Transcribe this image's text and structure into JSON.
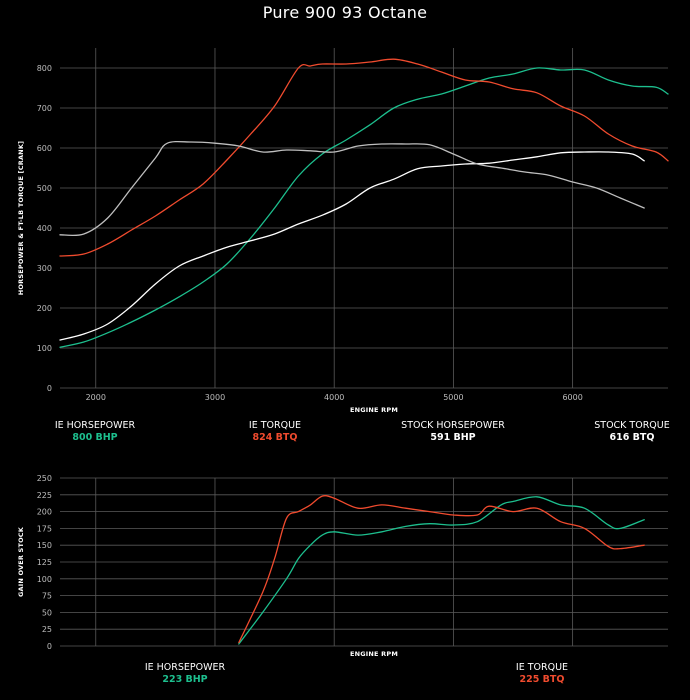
{
  "title": "Pure 900 93 Octane",
  "colors": {
    "ie_hp": "#1dbf8e",
    "ie_tq": "#f04b2e",
    "stock_hp": "#ffffff",
    "stock_tq": "#bfbfbf",
    "grid": "#5a5a5a"
  },
  "legend_top": [
    {
      "name": "IE HORSEPOWER",
      "value": "800 BHP",
      "color": "#1dbf8e"
    },
    {
      "name": "IE TORQUE",
      "value": "824 BTQ",
      "color": "#f04b2e"
    },
    {
      "name": "STOCK HORSEPOWER",
      "value": "591 BHP",
      "color": "#ffffff"
    },
    {
      "name": "STOCK TORQUE",
      "value": "616 BTQ",
      "color": "#ffffff"
    }
  ],
  "legend_bottom": [
    {
      "name": "IE HORSEPOWER",
      "value": "223 BHP",
      "color": "#1dbf8e"
    },
    {
      "name": "IE TORQUE",
      "value": "225 BTQ",
      "color": "#f04b2e"
    }
  ],
  "chart_data": [
    {
      "type": "line",
      "title": "Pure 900 93 Octane",
      "xlabel": "ENGINE RPM",
      "ylabel": "HORSEPOWER & FT-LB TORQUE [CRANK]",
      "xlim": [
        1700,
        6800
      ],
      "ylim": [
        0,
        850
      ],
      "xticks": [
        2000,
        3000,
        4000,
        5000,
        6000
      ],
      "yticks": [
        0,
        100,
        200,
        300,
        400,
        500,
        600,
        700,
        800
      ],
      "grid": true,
      "series": [
        {
          "name": "IE HORSEPOWER",
          "color": "#1dbf8e",
          "x": [
            1700,
            1900,
            2100,
            2300,
            2500,
            2700,
            2900,
            3100,
            3300,
            3500,
            3700,
            3900,
            4100,
            4300,
            4500,
            4700,
            4900,
            5100,
            5300,
            5500,
            5700,
            5900,
            6100,
            6300,
            6500,
            6700,
            6800
          ],
          "y": [
            102,
            115,
            138,
            165,
            195,
            228,
            265,
            310,
            375,
            450,
            530,
            585,
            620,
            658,
            700,
            722,
            735,
            755,
            775,
            785,
            800,
            795,
            795,
            770,
            755,
            752,
            735
          ]
        },
        {
          "name": "IE TORQUE",
          "color": "#f04b2e",
          "x": [
            1700,
            1900,
            2100,
            2300,
            2500,
            2700,
            2900,
            3100,
            3300,
            3500,
            3700,
            3800,
            3900,
            4100,
            4300,
            4500,
            4700,
            4900,
            5100,
            5300,
            5500,
            5700,
            5900,
            6100,
            6300,
            6500,
            6700,
            6800
          ],
          "y": [
            330,
            335,
            360,
            395,
            430,
            470,
            510,
            570,
            635,
            705,
            800,
            805,
            810,
            810,
            815,
            822,
            810,
            790,
            770,
            765,
            748,
            738,
            705,
            680,
            635,
            605,
            590,
            568
          ]
        },
        {
          "name": "STOCK HORSEPOWER",
          "color": "#ffffff",
          "x": [
            1700,
            1900,
            2100,
            2300,
            2500,
            2700,
            2900,
            3100,
            3300,
            3500,
            3700,
            3900,
            4100,
            4300,
            4500,
            4700,
            4900,
            5100,
            5300,
            5500,
            5700,
            5900,
            6100,
            6300,
            6500,
            6600
          ],
          "y": [
            120,
            135,
            160,
            205,
            260,
            305,
            330,
            352,
            368,
            385,
            410,
            432,
            460,
            500,
            522,
            548,
            555,
            560,
            562,
            570,
            578,
            588,
            590,
            590,
            585,
            568
          ]
        },
        {
          "name": "STOCK TORQUE",
          "color": "#bfbfbf",
          "x": [
            1700,
            1900,
            2100,
            2300,
            2500,
            2600,
            2800,
            3000,
            3200,
            3400,
            3600,
            3800,
            4000,
            4200,
            4400,
            4600,
            4800,
            5000,
            5200,
            5400,
            5600,
            5800,
            6000,
            6200,
            6400,
            6600
          ],
          "y": [
            383,
            385,
            425,
            500,
            575,
            612,
            615,
            612,
            605,
            590,
            595,
            593,
            590,
            605,
            610,
            610,
            608,
            585,
            560,
            550,
            540,
            532,
            515,
            500,
            475,
            450
          ]
        }
      ]
    },
    {
      "type": "line",
      "xlabel": "ENGINE RPM",
      "ylabel": "GAIN OVER STOCK",
      "xlim": [
        1700,
        6800
      ],
      "ylim": [
        0,
        250
      ],
      "xticks": [],
      "yticks": [
        0,
        25,
        50,
        75,
        100,
        125,
        150,
        175,
        200,
        225,
        250
      ],
      "grid": true,
      "series": [
        {
          "name": "IE HORSEPOWER",
          "color": "#1dbf8e",
          "x": [
            3200,
            3400,
            3600,
            3700,
            3800,
            3900,
            4000,
            4200,
            4400,
            4600,
            4800,
            5000,
            5200,
            5400,
            5500,
            5700,
            5900,
            6100,
            6300,
            6400,
            6600
          ],
          "y": [
            3,
            50,
            100,
            130,
            150,
            165,
            170,
            165,
            170,
            178,
            182,
            180,
            185,
            210,
            215,
            222,
            210,
            205,
            180,
            175,
            188
          ]
        },
        {
          "name": "IE TORQUE",
          "color": "#f04b2e",
          "x": [
            3200,
            3400,
            3500,
            3600,
            3700,
            3800,
            3900,
            4000,
            4200,
            4400,
            4600,
            4800,
            5000,
            5200,
            5300,
            5500,
            5700,
            5900,
            6100,
            6300,
            6400,
            6600
          ],
          "y": [
            5,
            80,
            130,
            190,
            200,
            210,
            223,
            220,
            205,
            210,
            205,
            200,
            195,
            195,
            208,
            200,
            205,
            185,
            175,
            148,
            145,
            150
          ]
        }
      ]
    }
  ]
}
